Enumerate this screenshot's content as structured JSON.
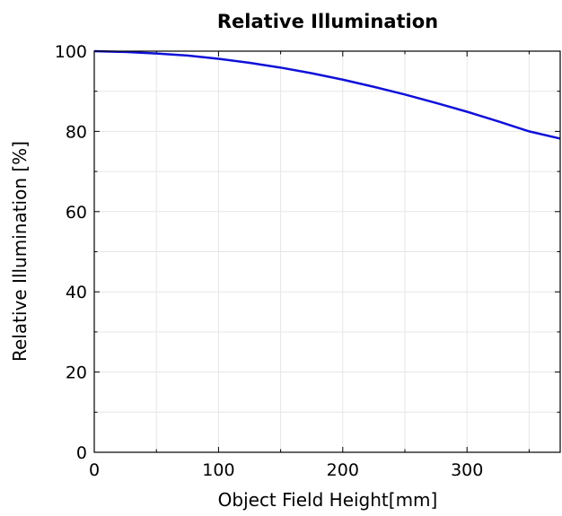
{
  "chart_data": {
    "type": "line",
    "title": "Relative Illumination",
    "xlabel": "Object Field Height[mm]",
    "ylabel": "Relative Illumination [%]",
    "xlim": [
      0,
      375
    ],
    "ylim": [
      0,
      100
    ],
    "grid": true,
    "x_major_ticks": [
      0,
      100,
      200,
      300
    ],
    "y_major_ticks": [
      0,
      20,
      40,
      60,
      80,
      100
    ],
    "x_minor_ticks": [
      50,
      150,
      250,
      350
    ],
    "y_minor_ticks": [
      10,
      30,
      50,
      70,
      90
    ],
    "series": [
      {
        "color": "#1010d8",
        "x": [
          0,
          25,
          50,
          75,
          100,
          125,
          150,
          175,
          200,
          225,
          250,
          275,
          300,
          325,
          350,
          375
        ],
        "y": [
          100,
          99.8,
          99.4,
          98.9,
          98.1,
          97.1,
          95.9,
          94.5,
          92.9,
          91.1,
          89.2,
          87.1,
          84.9,
          82.5,
          80.0,
          78.2
        ]
      }
    ]
  }
}
